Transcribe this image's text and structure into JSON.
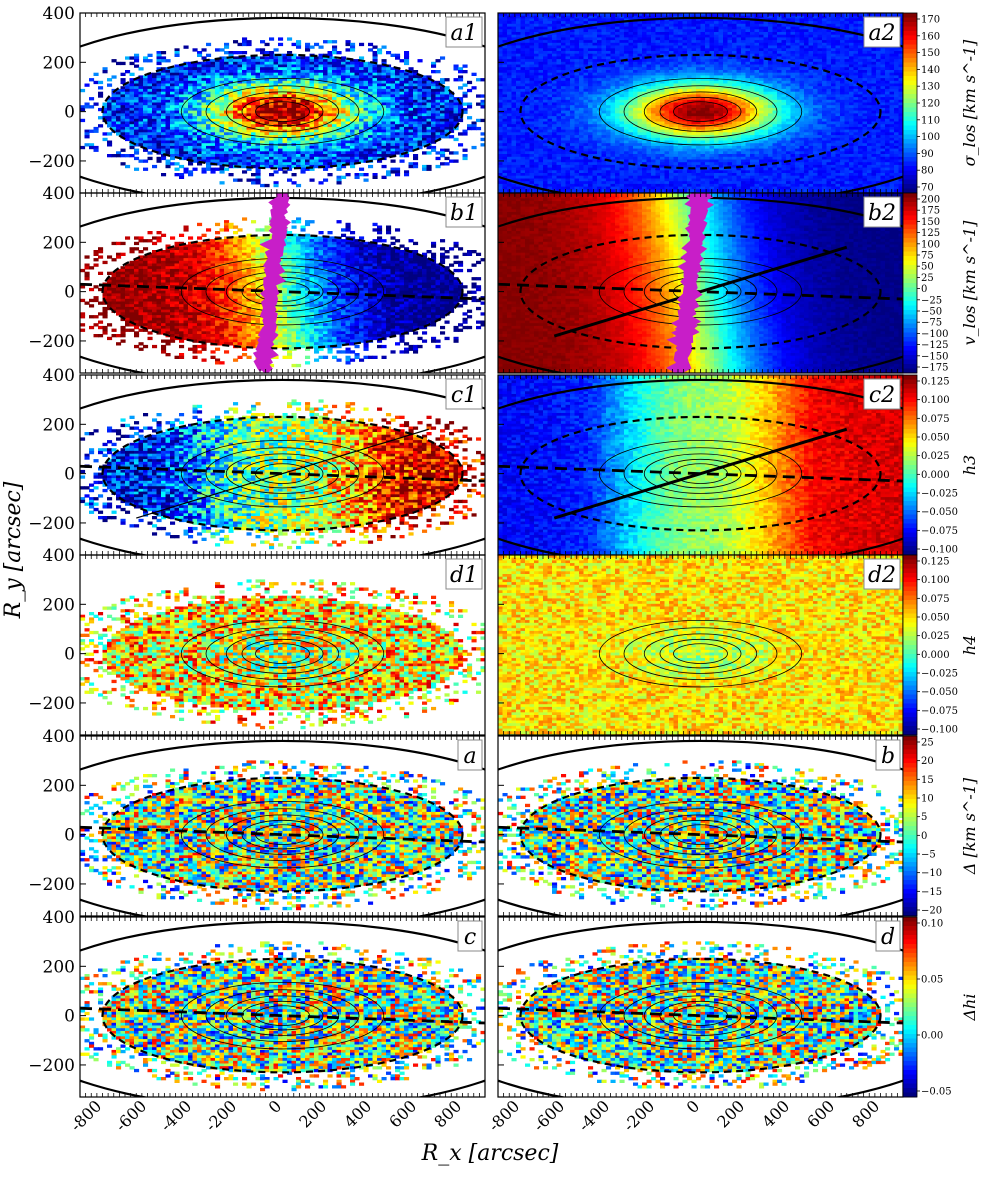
{
  "figure": {
    "xlabel": "R_x [arcsec]",
    "ylabel": "R_y [arcsec]",
    "x_ticks": [
      -800,
      -600,
      -400,
      -200,
      0,
      200,
      400,
      600,
      800
    ],
    "y_ticks": [
      400,
      200,
      0,
      -200
    ]
  },
  "panels": [
    {
      "row": 0,
      "col": 0,
      "label": "a1",
      "map": "sigma",
      "has_ellipses": true,
      "has_major_axis_dash": false
    },
    {
      "row": 0,
      "col": 1,
      "label": "a2",
      "map": "sigma",
      "has_ellipses": true,
      "has_major_axis_dash": false
    },
    {
      "row": 1,
      "col": 0,
      "label": "b1",
      "map": "velocity",
      "has_ellipses": true,
      "has_major_axis_dash": true,
      "magenta_strip": true
    },
    {
      "row": 1,
      "col": 1,
      "label": "b2",
      "map": "velocity",
      "has_ellipses": true,
      "has_major_axis_dash": true,
      "magenta_strip": true,
      "has_kinematic_line": true
    },
    {
      "row": 2,
      "col": 0,
      "label": "c1",
      "map": "h3",
      "has_ellipses": true,
      "has_major_axis_dash": true,
      "has_kinematic_line": true
    },
    {
      "row": 2,
      "col": 1,
      "label": "c2",
      "map": "h3",
      "has_ellipses": true,
      "has_major_axis_dash": true,
      "has_kinematic_line": true
    },
    {
      "row": 3,
      "col": 0,
      "label": "d1",
      "map": "h4",
      "has_ellipses": false,
      "has_major_axis_dash": false
    },
    {
      "row": 3,
      "col": 1,
      "label": "d2",
      "map": "h4",
      "has_ellipses": false,
      "has_major_axis_dash": false
    },
    {
      "row": 4,
      "col": 0,
      "label": "a",
      "map": "delta",
      "has_ellipses": true,
      "has_major_axis_dash": true
    },
    {
      "row": 4,
      "col": 1,
      "label": "b",
      "map": "delta",
      "has_ellipses": true,
      "has_major_axis_dash": true
    },
    {
      "row": 5,
      "col": 0,
      "label": "c",
      "map": "deltahi",
      "has_ellipses": true,
      "has_major_axis_dash": true
    },
    {
      "row": 5,
      "col": 1,
      "label": "d",
      "map": "deltahi",
      "has_ellipses": true,
      "has_major_axis_dash": true
    }
  ],
  "colorbars": [
    {
      "row": 0,
      "label": "σ_los [km s^-1]",
      "ticks": [
        "170",
        "160",
        "150",
        "140",
        "130",
        "120",
        "110",
        "100",
        "90",
        "80",
        "70"
      ]
    },
    {
      "row": 1,
      "label": "v_los [km s^-1]",
      "ticks": [
        "200",
        "175",
        "150",
        "125",
        "100",
        "75",
        "50",
        "25",
        "0",
        "−25",
        "−50",
        "−75",
        "−100",
        "−125",
        "−150",
        "−175"
      ]
    },
    {
      "row": 2,
      "label": "h3",
      "ticks": [
        "0.125",
        "0.100",
        "0.075",
        "0.050",
        "0.025",
        "0.000",
        "−0.025",
        "−0.050",
        "−0.075",
        "−0.100"
      ]
    },
    {
      "row": 3,
      "label": "h4",
      "ticks": [
        "0.125",
        "0.100",
        "0.075",
        "0.050",
        "0.025",
        "0.000",
        "−0.025",
        "−0.050",
        "−0.075",
        "−0.100"
      ]
    },
    {
      "row": 4,
      "label": "Δ [km s^-1]",
      "ticks": [
        "25",
        "20",
        "15",
        "10",
        "5",
        "0",
        "−5",
        "−10",
        "−15",
        "−20"
      ]
    },
    {
      "row": 5,
      "label": "Δhi",
      "ticks": [
        "0.10",
        "0.05",
        "0.00",
        "−0.05"
      ]
    }
  ],
  "chart_data": {
    "type": "heatmap",
    "xlabel": "R_x [arcsec]",
    "ylabel": "R_y [arcsec]",
    "xlim": [
      -900,
      900
    ],
    "ylim": [
      -330,
      400
    ],
    "panel_labels": [
      "a1",
      "a2",
      "b1",
      "b2",
      "c1",
      "c2",
      "d1",
      "d2",
      "a",
      "b",
      "c",
      "d"
    ],
    "colorbar_ranges": {
      "sigma_los": [
        65,
        170
      ],
      "v_los": [
        -185,
        205
      ],
      "h3": [
        -0.11,
        0.125
      ],
      "h4": [
        -0.11,
        0.125
      ],
      "delta": [
        -22,
        25
      ],
      "delta_hi": [
        -0.09,
        0.1
      ]
    }
  }
}
